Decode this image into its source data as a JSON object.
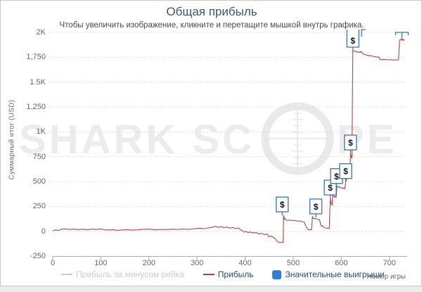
{
  "colors": {
    "title": "#3E576F",
    "profit_line": "#AA4643",
    "win_marker_border": "#3474b4",
    "win_legend_square": "#2F7ED8",
    "disabled_legend": "#cccccc",
    "enabled_legend_text": "#274b6d",
    "watermark": "#ececec",
    "gridline": "#dcdcdc"
  },
  "watermark": {
    "left_text": "SHARK SC",
    "right_text": "PE"
  },
  "legend": {
    "items": [
      {
        "label": "Прибыль за минусом рейка",
        "enabled": false,
        "swatch": "gray-line"
      },
      {
        "label": "Прибыль",
        "enabled": true,
        "swatch": "red-line"
      },
      {
        "label": "Значительные выигрыши",
        "enabled": true,
        "swatch": "blue-square"
      }
    ]
  },
  "chart_data": {
    "type": "line",
    "title": "Общая прибыль",
    "subtitle": "Чтобы увеличить изображение, кликните и перетащите мышкой внутрь графика.",
    "xlabel": "Номер игры",
    "ylabel": "Суммарный итог (USD)",
    "xlim": [
      0,
      737
    ],
    "ylim": [
      -250,
      2000
    ],
    "grid": "dashed-horizontal",
    "legend_position": "bottom",
    "x_ticks": [
      {
        "v": 0,
        "label": "0"
      },
      {
        "v": 100,
        "label": "100"
      },
      {
        "v": 200,
        "label": "200"
      },
      {
        "v": 300,
        "label": "300"
      },
      {
        "v": 400,
        "label": "400"
      },
      {
        "v": 500,
        "label": "500"
      },
      {
        "v": 600,
        "label": "600"
      },
      {
        "v": 700,
        "label": "700"
      }
    ],
    "y_ticks": [
      {
        "v": 2000,
        "label": "2K"
      },
      {
        "v": 1750,
        "label": "1,750"
      },
      {
        "v": 1500,
        "label": "1.5K"
      },
      {
        "v": 1250,
        "label": "1,250"
      },
      {
        "v": 1000,
        "label": "1K"
      },
      {
        "v": 750,
        "label": "750"
      },
      {
        "v": 500,
        "label": "500"
      },
      {
        "v": 250,
        "label": "250"
      },
      {
        "v": 0,
        "label": "0"
      },
      {
        "v": -250,
        "label": "-250"
      }
    ],
    "series": [
      {
        "name": "Прибыль",
        "color": "#AA4643",
        "points": [
          [
            0,
            5
          ],
          [
            6,
            14
          ],
          [
            12,
            8
          ],
          [
            18,
            20
          ],
          [
            26,
            24
          ],
          [
            34,
            18
          ],
          [
            44,
            22
          ],
          [
            52,
            17
          ],
          [
            62,
            21
          ],
          [
            72,
            16
          ],
          [
            82,
            22
          ],
          [
            92,
            18
          ],
          [
            100,
            24
          ],
          [
            108,
            15
          ],
          [
            116,
            13
          ],
          [
            126,
            17
          ],
          [
            134,
            9
          ],
          [
            144,
            13
          ],
          [
            154,
            17
          ],
          [
            164,
            11
          ],
          [
            176,
            14
          ],
          [
            188,
            20
          ],
          [
            200,
            22
          ],
          [
            212,
            16
          ],
          [
            224,
            19
          ],
          [
            236,
            17
          ],
          [
            248,
            21
          ],
          [
            260,
            19
          ],
          [
            272,
            23
          ],
          [
            284,
            19
          ],
          [
            296,
            27
          ],
          [
            306,
            31
          ],
          [
            314,
            26
          ],
          [
            322,
            33
          ],
          [
            330,
            39
          ],
          [
            338,
            49
          ],
          [
            344,
            41
          ],
          [
            350,
            46
          ],
          [
            356,
            36
          ],
          [
            362,
            43
          ],
          [
            368,
            31
          ],
          [
            374,
            37
          ],
          [
            380,
            29
          ],
          [
            386,
            33
          ],
          [
            390,
            16
          ],
          [
            394,
            6
          ],
          [
            398,
            -8
          ],
          [
            402,
            -2
          ],
          [
            406,
            -14
          ],
          [
            410,
            -7
          ],
          [
            416,
            -18
          ],
          [
            422,
            -12
          ],
          [
            428,
            -26
          ],
          [
            434,
            -21
          ],
          [
            440,
            -33
          ],
          [
            446,
            -29
          ],
          [
            450,
            -56
          ],
          [
            454,
            -46
          ],
          [
            458,
            -60
          ],
          [
            462,
            -72
          ],
          [
            466,
            -98
          ],
          [
            469,
            -110
          ],
          [
            473,
            -113
          ],
          [
            477,
            -108
          ],
          [
            479,
            -112
          ],
          [
            480,
            160
          ],
          [
            481,
            118
          ],
          [
            482,
            136
          ],
          [
            485,
            113
          ],
          [
            489,
            108
          ],
          [
            494,
            113
          ],
          [
            499,
            107
          ],
          [
            504,
            109
          ],
          [
            509,
            101
          ],
          [
            514,
            104
          ],
          [
            519,
            97
          ],
          [
            523,
            91
          ],
          [
            526,
            56
          ],
          [
            529,
            26
          ],
          [
            532,
            13
          ],
          [
            535,
            19
          ],
          [
            538,
            14
          ],
          [
            540,
            150
          ],
          [
            541,
            133
          ],
          [
            543,
            127
          ],
          [
            546,
            131
          ],
          [
            549,
            123
          ],
          [
            552,
            119
          ],
          [
            555,
            113
          ],
          [
            557,
            66
          ],
          [
            559,
            49
          ],
          [
            561,
            56
          ],
          [
            564,
            39
          ],
          [
            567,
            33
          ],
          [
            571,
            31
          ],
          [
            575,
            29
          ],
          [
            577,
            330
          ],
          [
            578,
            301
          ],
          [
            579,
            269
          ],
          [
            581,
            263
          ],
          [
            582,
            362
          ],
          [
            584,
            349
          ],
          [
            586,
            343
          ],
          [
            588,
            353
          ],
          [
            589,
            339
          ],
          [
            591,
            448
          ],
          [
            593,
            454
          ],
          [
            595,
            441
          ],
          [
            597,
            449
          ],
          [
            599,
            437
          ],
          [
            601,
            431
          ],
          [
            603,
            439
          ],
          [
            605,
            429
          ],
          [
            607,
            426
          ],
          [
            609,
            495
          ],
          [
            611,
            523
          ],
          [
            612,
            547
          ],
          [
            614,
            539
          ],
          [
            615,
            561
          ],
          [
            616,
            553
          ],
          [
            617,
            559
          ],
          [
            618,
            549
          ],
          [
            619,
            783
          ],
          [
            620,
            762
          ],
          [
            621,
            737
          ],
          [
            622,
            742
          ],
          [
            624,
            1816
          ],
          [
            627,
            1809
          ],
          [
            630,
            1813
          ],
          [
            633,
            1799
          ],
          [
            636,
            1804
          ],
          [
            639,
            1794
          ],
          [
            641,
            1811
          ],
          [
            643,
            1801
          ],
          [
            645,
            1783
          ],
          [
            649,
            1779
          ],
          [
            652,
            1769
          ],
          [
            655,
            1773
          ],
          [
            658,
            1763
          ],
          [
            662,
            1766
          ],
          [
            666,
            1759
          ],
          [
            670,
            1756
          ],
          [
            674,
            1751
          ],
          [
            678,
            1753
          ],
          [
            680,
            1729
          ],
          [
            685,
            1726
          ],
          [
            690,
            1728
          ],
          [
            696,
            1724
          ],
          [
            702,
            1726
          ],
          [
            708,
            1722
          ],
          [
            713,
            1724
          ],
          [
            717,
            1721
          ],
          [
            719,
            1727
          ],
          [
            721,
            1922
          ],
          [
            723,
            1930
          ],
          [
            725,
            1921
          ],
          [
            727,
            1928
          ],
          [
            729,
            1920
          ],
          [
            730,
            1931
          ],
          [
            731,
            1918
          ]
        ]
      }
    ],
    "hidden_series": [
      {
        "name": "Прибыль за минусом рейка",
        "color": "#cccccc"
      }
    ],
    "significant_wins": {
      "name": "Значительные выигрыши",
      "symbol": "$",
      "color": "#2F7ED8",
      "markers": [
        {
          "game": 477,
          "value": 160,
          "style": "full"
        },
        {
          "game": 547,
          "value": 140,
          "style": "full"
        },
        {
          "game": 577,
          "value": 330,
          "style": "full"
        },
        {
          "game": 590,
          "value": 445,
          "style": "full"
        },
        {
          "game": 609,
          "value": 495,
          "style": "full"
        },
        {
          "game": 619,
          "value": 783,
          "style": "full"
        },
        {
          "game": 624,
          "value": 1816,
          "style": "clip-double"
        },
        {
          "game": 642,
          "value": 1960,
          "style": "clip-corner"
        },
        {
          "game": 726,
          "value": 1922,
          "style": "clip-bottom"
        }
      ]
    }
  }
}
